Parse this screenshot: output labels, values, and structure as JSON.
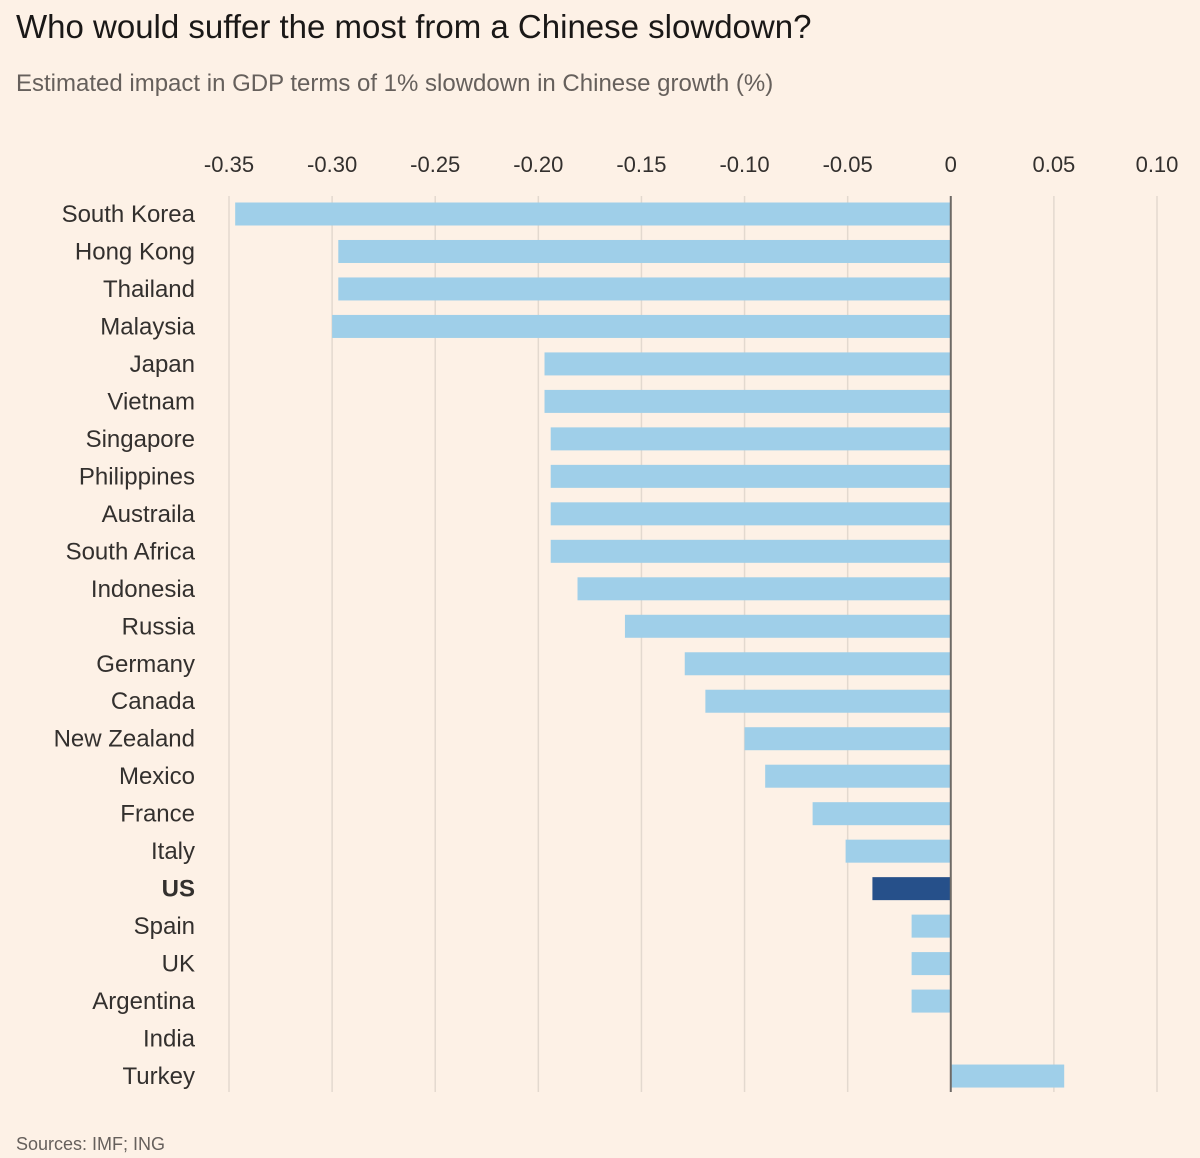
{
  "title": "Who would suffer the most from a Chinese slowdown?",
  "subtitle": "Estimated impact in GDP terms of 1% slowdown in Chinese growth (%)",
  "source": "Sources: IMF; ING",
  "colors": {
    "bar": "#9fcfe9",
    "highlight": "#26508a",
    "grid": "#e3d9cf",
    "zero_line": "#6e6a66",
    "text": "#33302e"
  },
  "chart_data": {
    "type": "bar",
    "orientation": "horizontal",
    "title": "Who would suffer the most from a Chinese slowdown?",
    "subtitle": "Estimated impact in GDP terms of 1% slowdown in Chinese growth (%)",
    "xlabel": "",
    "ylabel": "",
    "xlim": [
      -0.35,
      0.1
    ],
    "ticks": [
      -0.35,
      -0.3,
      -0.25,
      -0.2,
      -0.15,
      -0.1,
      -0.05,
      0,
      0.05,
      0.1
    ],
    "tick_labels": [
      "-0.35",
      "-0.30",
      "-0.25",
      "-0.20",
      "-0.15",
      "-0.10",
      "-0.05",
      "0",
      "0.05",
      "0.10"
    ],
    "grid": true,
    "categories": [
      "South Korea",
      "Hong Kong",
      "Thailand",
      "Malaysia",
      "Japan",
      "Vietnam",
      "Singapore",
      "Philippines",
      "Austraila",
      "South Africa",
      "Indonesia",
      "Russia",
      "Germany",
      "Canada",
      "New Zealand",
      "Mexico",
      "France",
      "Italy",
      "US",
      "Spain",
      "UK",
      "Argentina",
      "India",
      "Turkey"
    ],
    "values": [
      -0.347,
      -0.297,
      -0.297,
      -0.3,
      -0.197,
      -0.197,
      -0.194,
      -0.194,
      -0.194,
      -0.194,
      -0.181,
      -0.158,
      -0.129,
      -0.119,
      -0.1,
      -0.09,
      -0.067,
      -0.051,
      -0.038,
      -0.019,
      -0.019,
      -0.019,
      0.0,
      0.055
    ],
    "highlight": [
      "US"
    ]
  }
}
